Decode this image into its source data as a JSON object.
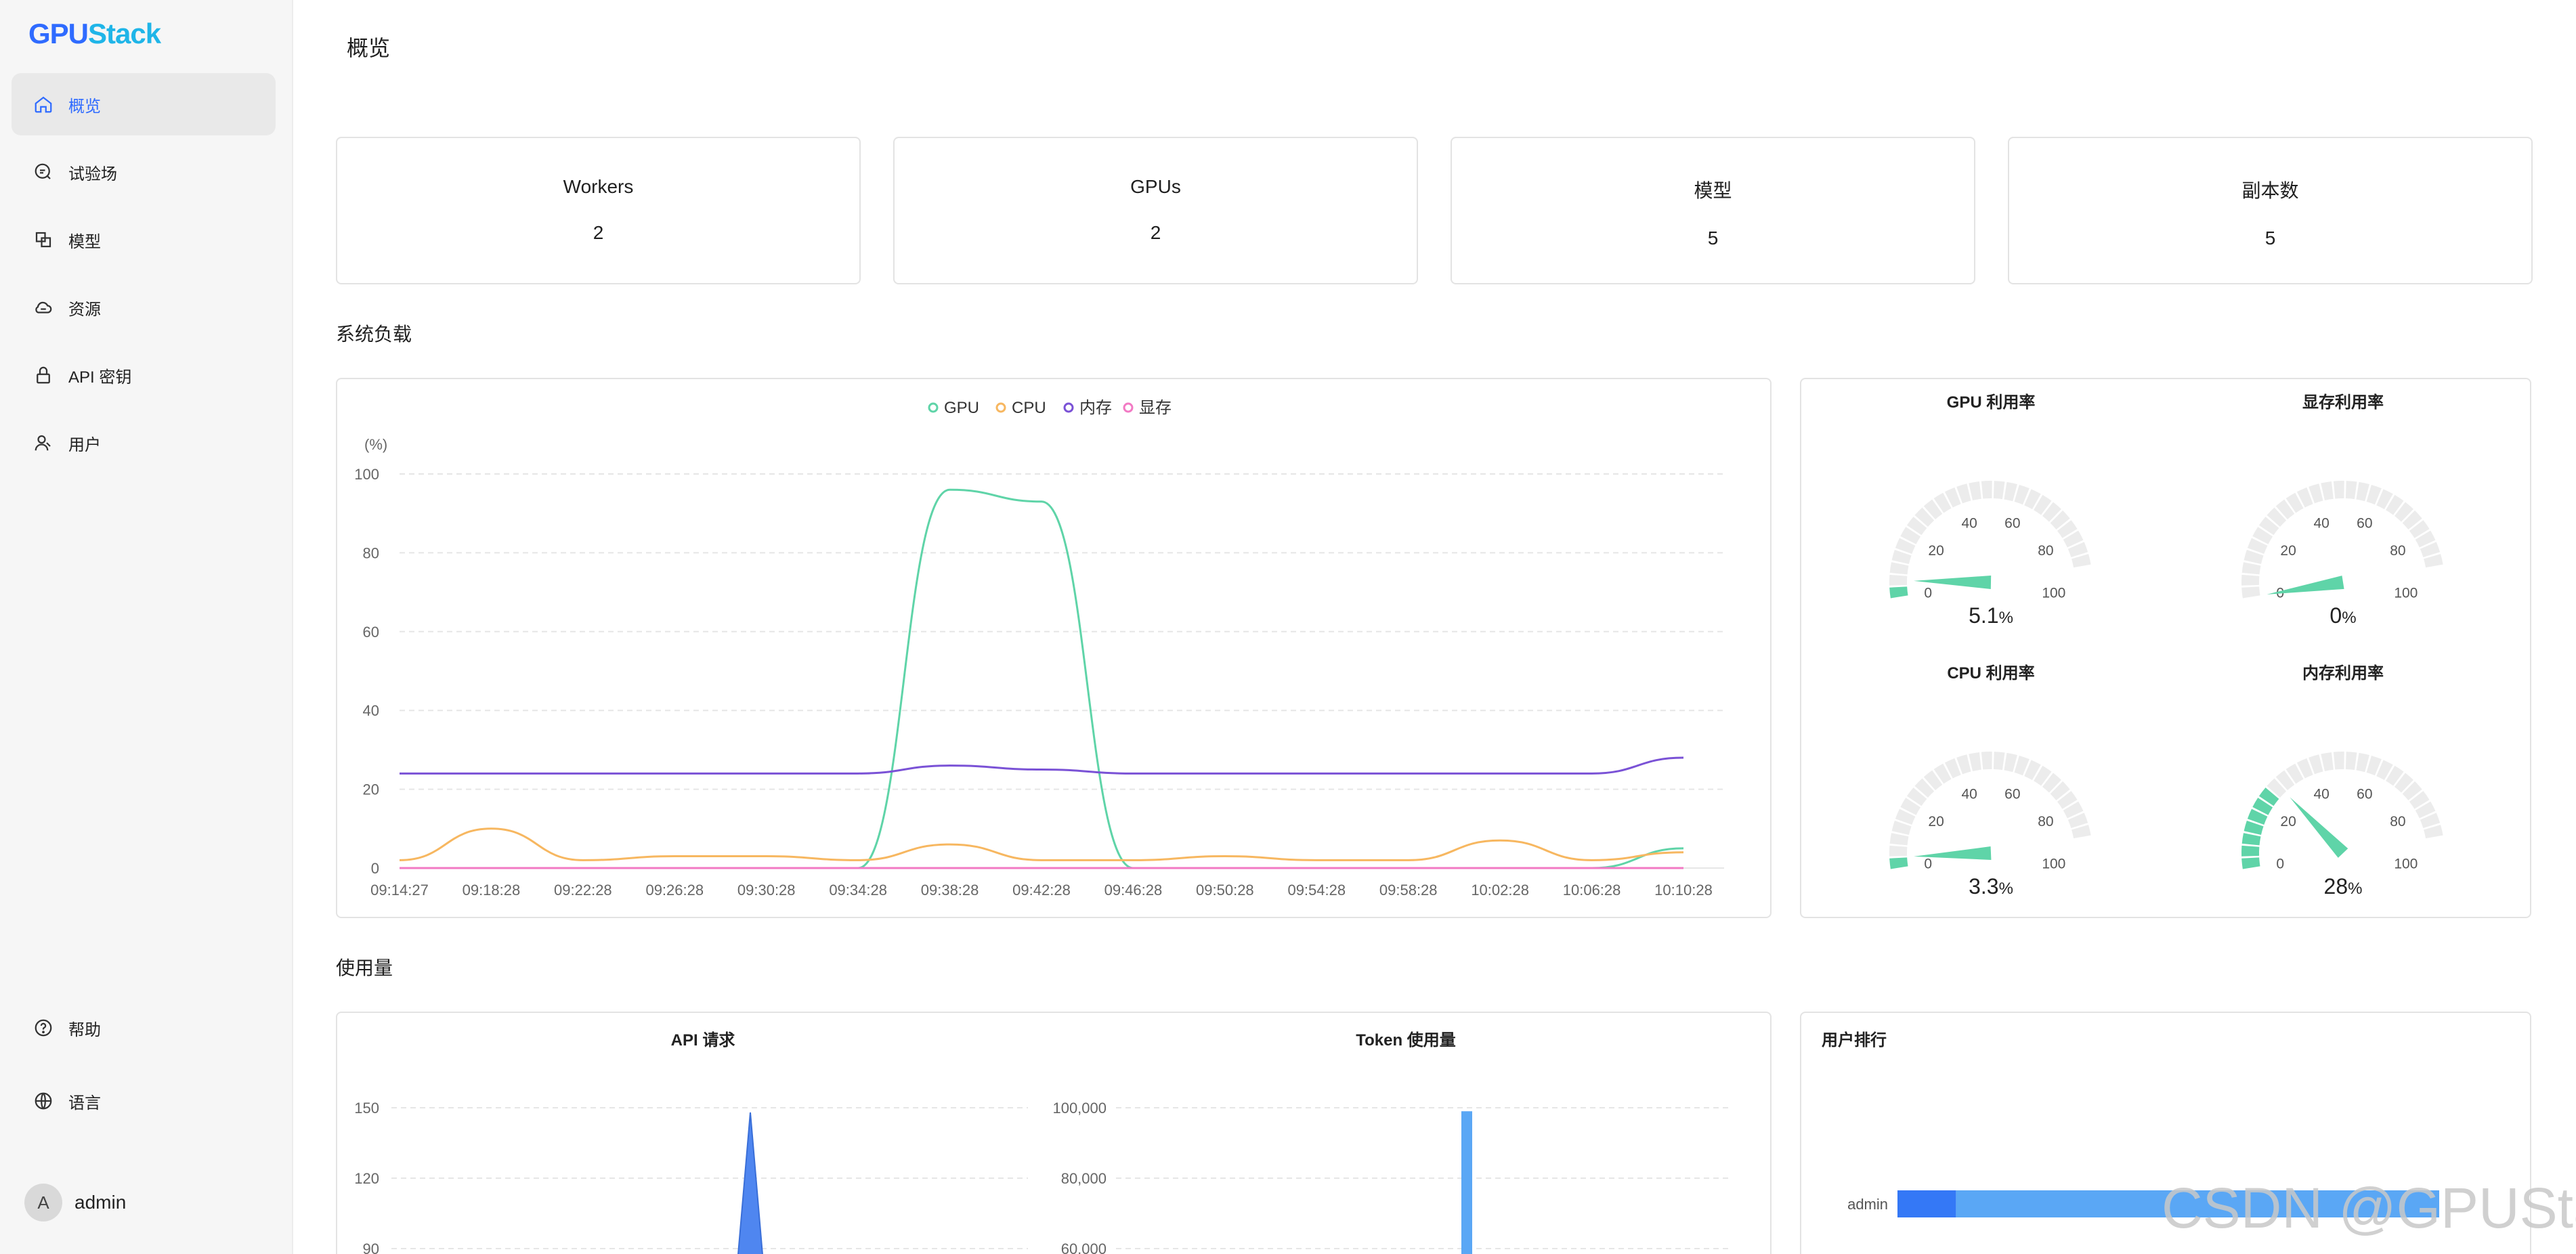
{
  "app": {
    "logo_part1": "GPU",
    "logo_part2": "Stack",
    "page_title": "概览"
  },
  "sidebar": {
    "items": [
      {
        "label": "概览",
        "icon": "home-icon",
        "active": true
      },
      {
        "label": "试验场",
        "icon": "chat-icon",
        "active": false
      },
      {
        "label": "模型",
        "icon": "model-icon",
        "active": false
      },
      {
        "label": "资源",
        "icon": "cloud-icon",
        "active": false
      },
      {
        "label": "API 密钥",
        "icon": "lock-icon",
        "active": false
      },
      {
        "label": "用户",
        "icon": "user-icon",
        "active": false
      }
    ],
    "bottom": [
      {
        "label": "帮助",
        "icon": "help-icon"
      },
      {
        "label": "语言",
        "icon": "globe-icon"
      }
    ],
    "user": {
      "avatar_letter": "A",
      "name": "admin"
    }
  },
  "stats": [
    {
      "title": "Workers",
      "value": "2"
    },
    {
      "title": "GPUs",
      "value": "2"
    },
    {
      "title": "模型",
      "value": "5"
    },
    {
      "title": "副本数",
      "value": "5"
    }
  ],
  "sections": {
    "system_load": "系统负载",
    "usage": "使用量"
  },
  "colors": {
    "accent": "#2f6bff",
    "gpu": "#5fd4a8",
    "cpu": "#f7b760",
    "memory": "#7a52d6",
    "vram": "#f27ac4",
    "gauge_fill": "#5fd4a8",
    "bar": "#5aa7f5"
  },
  "chart_data": [
    {
      "type": "line",
      "legend": [
        "GPU",
        "CPU",
        "内存",
        "显存"
      ],
      "ylabel": "(%)",
      "ylim": [
        0,
        100
      ],
      "yticks": [
        0,
        20,
        40,
        60,
        80,
        100
      ],
      "x": [
        "09:14:27",
        "09:18:28",
        "09:22:28",
        "09:26:28",
        "09:30:28",
        "09:34:28",
        "09:38:28",
        "09:42:28",
        "09:46:28",
        "09:50:28",
        "09:54:28",
        "09:58:28",
        "10:02:28",
        "10:06:28",
        "10:10:28"
      ],
      "series": [
        {
          "name": "GPU",
          "values": [
            0,
            0,
            0,
            0,
            0,
            0,
            96,
            93,
            0,
            0,
            0,
            0,
            0,
            0,
            5
          ]
        },
        {
          "name": "CPU",
          "values": [
            2,
            10,
            2,
            3,
            3,
            2,
            6,
            2,
            2,
            3,
            2,
            2,
            7,
            2,
            4
          ]
        },
        {
          "name": "内存",
          "values": [
            24,
            24,
            24,
            24,
            24,
            24,
            26,
            25,
            24,
            24,
            24,
            24,
            24,
            24,
            28
          ]
        },
        {
          "name": "显存",
          "values": [
            0,
            0,
            0,
            0,
            0,
            0,
            0,
            0,
            0,
            0,
            0,
            0,
            0,
            0,
            0
          ]
        }
      ],
      "grid": true,
      "legend_position": "top-center"
    },
    {
      "type": "gauge",
      "gauges": [
        {
          "title": "GPU 利用率",
          "value": 5.1,
          "display": "5.1",
          "unit": "%"
        },
        {
          "title": "显存利用率",
          "value": 0,
          "display": "0",
          "unit": "%"
        },
        {
          "title": "CPU 利用率",
          "value": 3.3,
          "display": "3.3",
          "unit": "%"
        },
        {
          "title": "内存利用率",
          "value": 28,
          "display": "28",
          "unit": "%"
        }
      ],
      "ticks": [
        "0",
        "20",
        "40",
        "60",
        "80",
        "100"
      ]
    },
    {
      "type": "area",
      "title": "API 请求",
      "yticks_visible": [
        "150",
        "120",
        "90"
      ],
      "ylim": [
        0,
        150
      ],
      "peak_value": 148
    },
    {
      "type": "bar",
      "title": "Token 使用量",
      "yticks_visible": [
        "100,000",
        "80,000",
        "60,000"
      ],
      "ylim": [
        0,
        100000
      ],
      "peak_value": 99000
    },
    {
      "type": "bar",
      "title": "用户排行",
      "categories": [
        "admin"
      ],
      "segments": [
        {
          "value": 0.08
        },
        {
          "value": 0.92
        }
      ]
    }
  ],
  "watermark": "CSDN @GPUStack"
}
